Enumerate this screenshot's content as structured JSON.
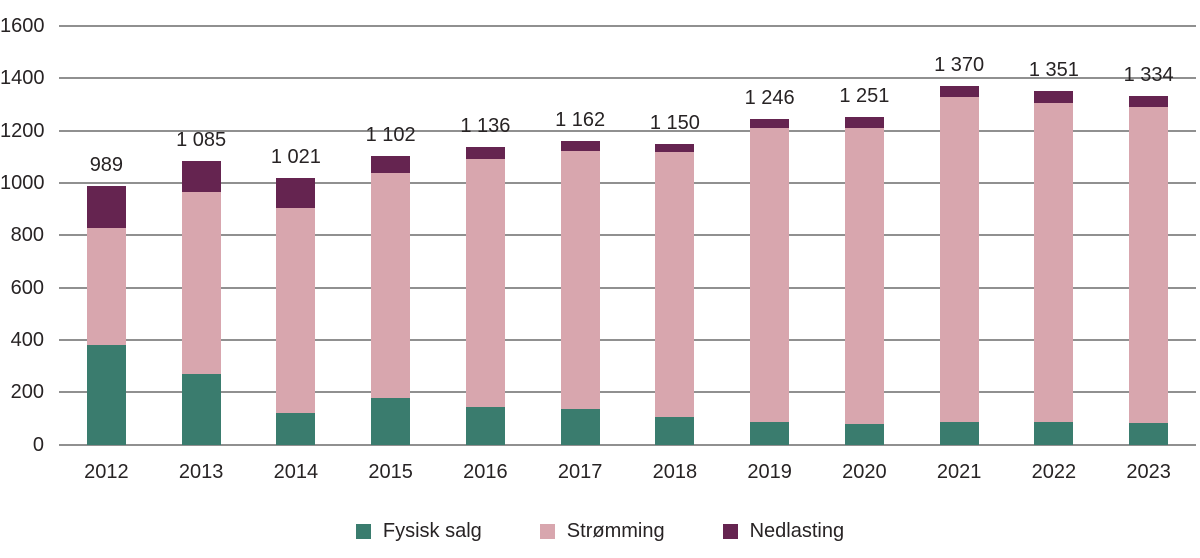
{
  "chart_data": {
    "type": "bar",
    "stacked": true,
    "title": "",
    "xlabel": "",
    "ylabel": "",
    "categories": [
      "2012",
      "2013",
      "2014",
      "2015",
      "2016",
      "2017",
      "2018",
      "2019",
      "2020",
      "2021",
      "2022",
      "2023"
    ],
    "series": [
      {
        "name": "Fysisk salg",
        "color": "#3a7c6e",
        "values": [
          380,
          272,
          122,
          178,
          145,
          138,
          105,
          85,
          78,
          88,
          85,
          82
        ]
      },
      {
        "name": "Strømming",
        "color": "#d8a6ae",
        "values": [
          449,
          693,
          784,
          862,
          946,
          984,
          1015,
          1127,
          1133,
          1241,
          1221,
          1207
        ]
      },
      {
        "name": "Nedlasting",
        "color": "#652450",
        "values": [
          160,
          120,
          115,
          62,
          45,
          40,
          30,
          34,
          40,
          41,
          45,
          45
        ]
      }
    ],
    "totals": [
      989,
      1085,
      1021,
      1102,
      1136,
      1162,
      1150,
      1246,
      1251,
      1370,
      1351,
      1334
    ],
    "total_labels": [
      "989",
      "1 085",
      "1 021",
      "1 102",
      "1 136",
      "1 162",
      "1 150",
      "1 246",
      "1 251",
      "1 370",
      "1 351",
      "1 334"
    ],
    "y_tick_values": [
      0,
      200,
      400,
      600,
      800,
      1000,
      1200,
      1400,
      1600
    ],
    "y_tick_labels": [
      "0",
      "200",
      "400",
      "600",
      "800",
      "1000",
      "1200",
      "1400",
      "1600"
    ],
    "ylim": [
      0,
      1600
    ],
    "grid": true,
    "legend_position": "bottom"
  },
  "style_colors": {
    "gridline": "#909090",
    "text": "#272324",
    "background": "#ffffff"
  }
}
